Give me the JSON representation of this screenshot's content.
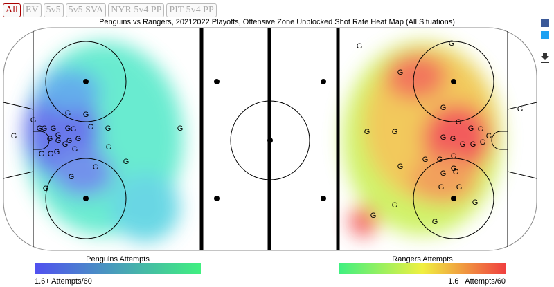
{
  "tabs": [
    "All",
    "EV",
    "5v5",
    "5v5 SVA",
    "NYR 5v4 PP",
    "PIT 5v4 PP"
  ],
  "title": "Penguins vs Rangers, 20212022 Playoffs, Offensive Zone Unblocked Shot Rate Heat Map (All Situations)",
  "goal_marker": "G",
  "legend": {
    "left": {
      "label": "Penguins Attempts",
      "scale": "1.6+ Attempts/60"
    },
    "right": {
      "label": "Rangers Attempts",
      "scale": "1.6+ Attempts/60"
    }
  }
}
